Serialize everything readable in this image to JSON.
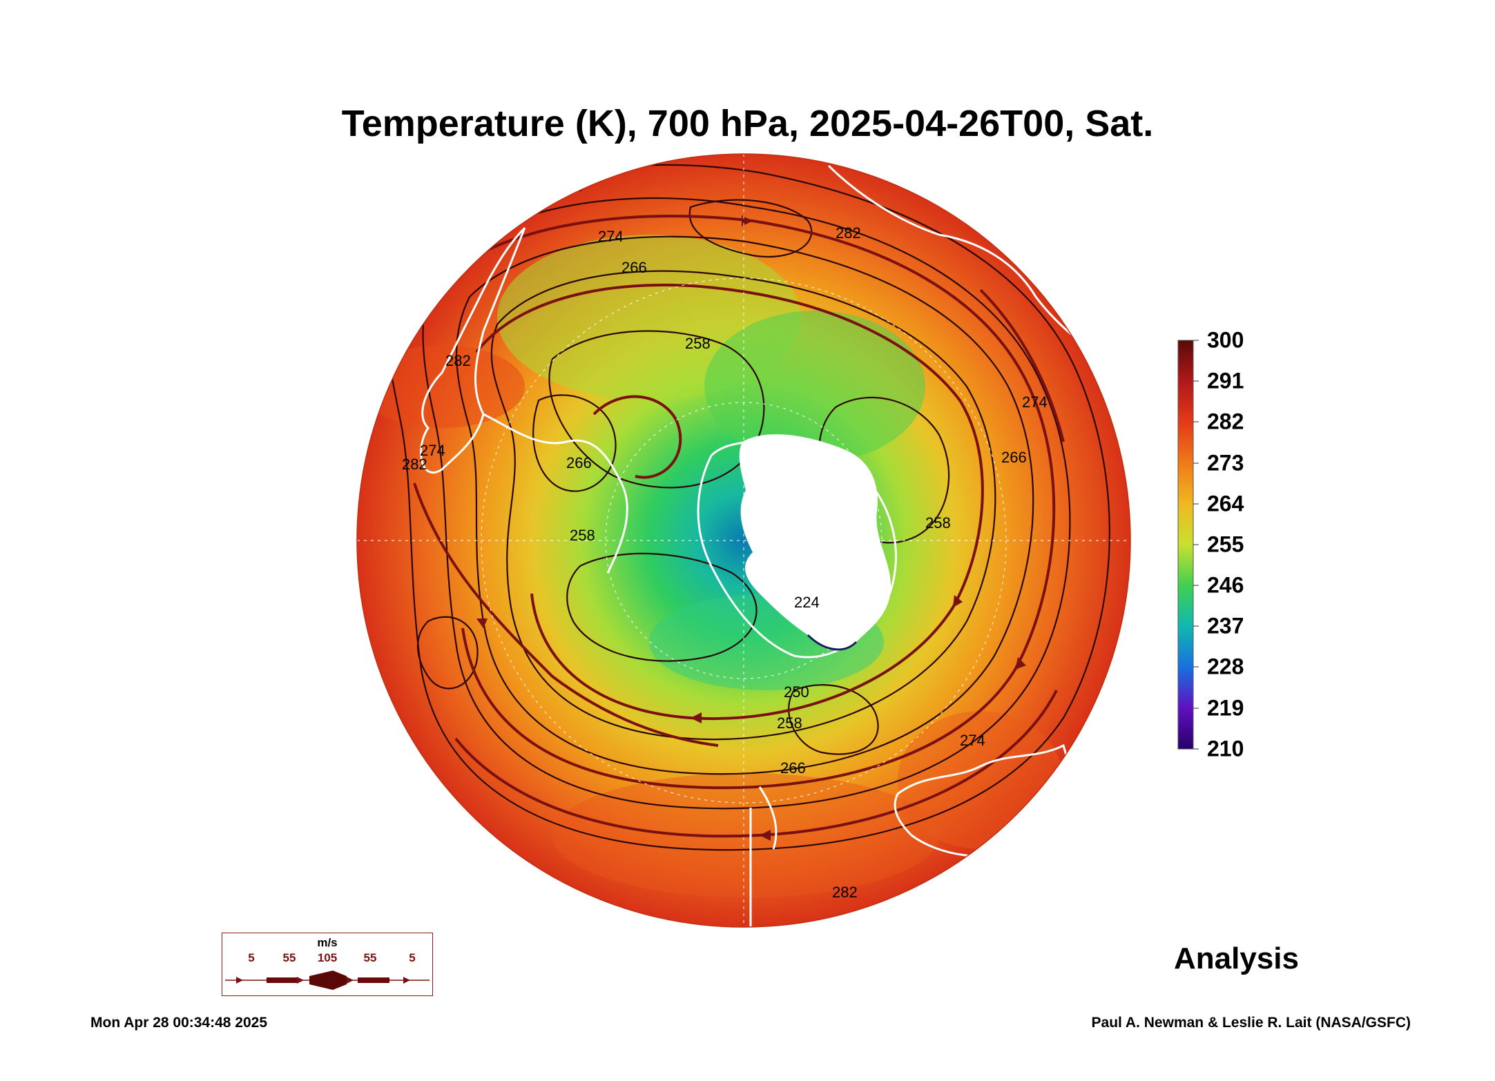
{
  "title": "Temperature (K), 700 hPa, 2025-04-26T00, Sat.",
  "colorbar": {
    "ticks": [
      "300",
      "291",
      "282",
      "273",
      "264",
      "255",
      "246",
      "237",
      "228",
      "219",
      "210"
    ],
    "colors": [
      "#5a0a0a",
      "#b01818",
      "#e43a18",
      "#f07a18",
      "#f0b820",
      "#c8e030",
      "#40d050",
      "#10b8b0",
      "#1870e0",
      "#6010c0",
      "#28006a"
    ]
  },
  "contour_labels": [
    "274",
    "266",
    "258",
    "282",
    "274",
    "282",
    "266",
    "258",
    "250",
    "258",
    "266",
    "274",
    "282",
    "258",
    "266",
    "274",
    "282",
    "224"
  ],
  "wind_legend": {
    "unit": "m/s",
    "speeds": [
      "5",
      "55",
      "105",
      "55",
      "5"
    ]
  },
  "analysis_label": "Analysis",
  "timestamp": "Mon Apr 28 00:34:48 2025",
  "credit": "Paul A. Newman & Leslie R. Lait (NASA/GSFC)",
  "colors": {
    "land_outline": "#ffffff",
    "contour": "#2a0808",
    "streamline": "#7a1010",
    "antarctica": "#ffffff"
  }
}
